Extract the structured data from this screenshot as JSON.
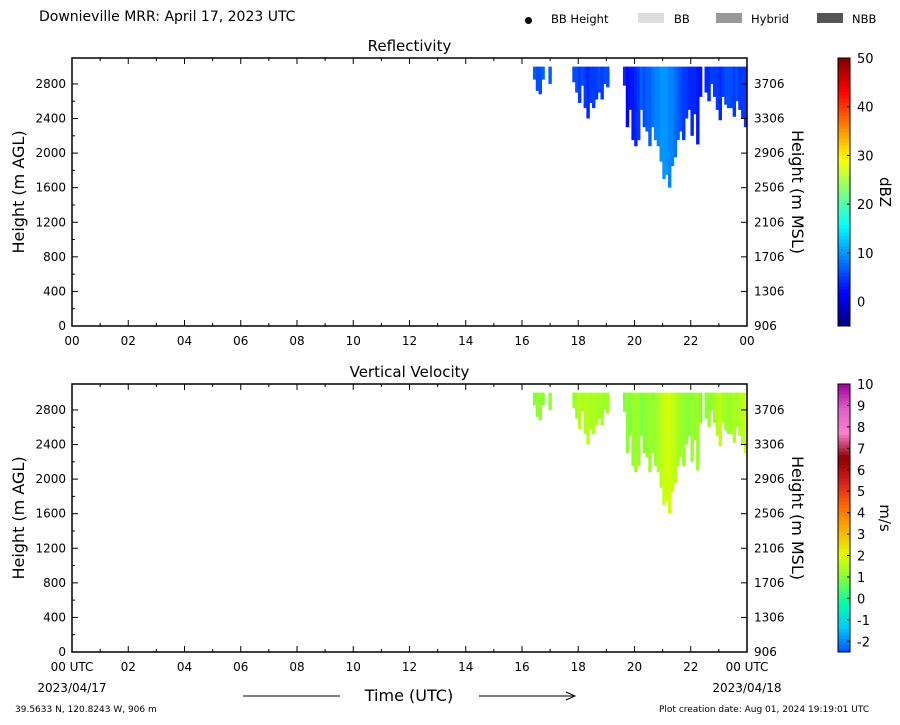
{
  "header": {
    "title": "Downieville MRR:  April 17, 2023 UTC",
    "legend": [
      {
        "label": "BB Height",
        "marker": "dot",
        "color": "#000000"
      },
      {
        "label": "BB",
        "marker": "swatch",
        "color": "#dcdcdc"
      },
      {
        "label": "Hybrid",
        "marker": "swatch",
        "color": "#999999"
      },
      {
        "label": "NBB",
        "marker": "swatch",
        "color": "#555555"
      }
    ]
  },
  "footer": {
    "location": "39.5633 N, 120.8243 W, 906 m",
    "creation": "Plot creation date: Aug 01, 2024 19:19:01 UTC"
  },
  "chart_data": [
    {
      "type": "heatmap",
      "title": "Reflectivity",
      "ylabel": "Height (m AGL)",
      "y2label": "Height (m MSL)",
      "xlim": [
        0,
        24
      ],
      "ylim": [
        0,
        3100
      ],
      "yticks": [
        0,
        400,
        800,
        1200,
        1600,
        2000,
        2400,
        2800
      ],
      "y2ticks": [
        "906",
        "1306",
        "1706",
        "2106",
        "2506",
        "2906",
        "3306",
        "3706"
      ],
      "xticks": [
        "00",
        "02",
        "04",
        "06",
        "08",
        "10",
        "12",
        "14",
        "16",
        "18",
        "20",
        "22",
        "00"
      ],
      "colorbar": {
        "label": "dBZ",
        "range": [
          -5,
          50
        ],
        "ticks": [
          "0",
          "10",
          "20",
          "30",
          "40",
          "50"
        ],
        "colors": [
          "#00007f",
          "#0000ff",
          "#007fff",
          "#00ffff",
          "#7fff7f",
          "#ffff00",
          "#ff7f00",
          "#ff0000",
          "#7f0000"
        ]
      },
      "echo_top": 3000,
      "profile": [
        {
          "x": 16.45,
          "bottom": 2850,
          "value": 7
        },
        {
          "x": 16.55,
          "bottom": 2720,
          "value": 6
        },
        {
          "x": 16.65,
          "bottom": 2680,
          "value": 6
        },
        {
          "x": 16.75,
          "bottom": 2850,
          "value": 7
        },
        {
          "x": 17.0,
          "bottom": 2800,
          "value": 7
        },
        {
          "x": 17.85,
          "bottom": 2820,
          "value": 6
        },
        {
          "x": 17.95,
          "bottom": 2700,
          "value": 6
        },
        {
          "x": 18.05,
          "bottom": 2580,
          "value": 5
        },
        {
          "x": 18.15,
          "bottom": 2780,
          "value": 6
        },
        {
          "x": 18.25,
          "bottom": 2520,
          "value": 5
        },
        {
          "x": 18.35,
          "bottom": 2400,
          "value": 4
        },
        {
          "x": 18.45,
          "bottom": 2580,
          "value": 5
        },
        {
          "x": 18.55,
          "bottom": 2520,
          "value": 5
        },
        {
          "x": 18.65,
          "bottom": 2620,
          "value": 5
        },
        {
          "x": 18.75,
          "bottom": 2700,
          "value": 6
        },
        {
          "x": 18.85,
          "bottom": 2620,
          "value": 5
        },
        {
          "x": 18.95,
          "bottom": 2800,
          "value": 6
        },
        {
          "x": 19.05,
          "bottom": 2760,
          "value": 6
        },
        {
          "x": 19.65,
          "bottom": 2780,
          "value": 4
        },
        {
          "x": 19.75,
          "bottom": 2300,
          "value": 2
        },
        {
          "x": 19.85,
          "bottom": 2500,
          "value": 3
        },
        {
          "x": 19.95,
          "bottom": 2150,
          "value": 3
        },
        {
          "x": 20.05,
          "bottom": 2080,
          "value": 4
        },
        {
          "x": 20.15,
          "bottom": 2150,
          "value": 5
        },
        {
          "x": 20.25,
          "bottom": 2500,
          "value": 7
        },
        {
          "x": 20.35,
          "bottom": 2300,
          "value": 6
        },
        {
          "x": 20.45,
          "bottom": 2250,
          "value": 7
        },
        {
          "x": 20.55,
          "bottom": 2080,
          "value": 7
        },
        {
          "x": 20.65,
          "bottom": 2300,
          "value": 8
        },
        {
          "x": 20.75,
          "bottom": 2150,
          "value": 9
        },
        {
          "x": 20.85,
          "bottom": 2080,
          "value": 9
        },
        {
          "x": 20.95,
          "bottom": 1900,
          "value": 10
        },
        {
          "x": 21.05,
          "bottom": 1700,
          "value": 10
        },
        {
          "x": 21.15,
          "bottom": 1750,
          "value": 10
        },
        {
          "x": 21.25,
          "bottom": 1600,
          "value": 9
        },
        {
          "x": 21.35,
          "bottom": 1850,
          "value": 9
        },
        {
          "x": 21.45,
          "bottom": 1950,
          "value": 8
        },
        {
          "x": 21.55,
          "bottom": 2150,
          "value": 7
        },
        {
          "x": 21.65,
          "bottom": 2250,
          "value": 6
        },
        {
          "x": 21.75,
          "bottom": 2150,
          "value": 5
        },
        {
          "x": 21.85,
          "bottom": 2400,
          "value": 5
        },
        {
          "x": 21.95,
          "bottom": 2500,
          "value": 4
        },
        {
          "x": 22.05,
          "bottom": 2200,
          "value": 4
        },
        {
          "x": 22.15,
          "bottom": 2450,
          "value": 4
        },
        {
          "x": 22.25,
          "bottom": 2100,
          "value": 3
        },
        {
          "x": 22.35,
          "bottom": 2650,
          "value": 3
        },
        {
          "x": 22.55,
          "bottom": 2700,
          "value": 4
        },
        {
          "x": 22.65,
          "bottom": 2600,
          "value": 4
        },
        {
          "x": 22.75,
          "bottom": 2800,
          "value": 5
        },
        {
          "x": 22.85,
          "bottom": 2650,
          "value": 5
        },
        {
          "x": 22.95,
          "bottom": 2500,
          "value": 5
        },
        {
          "x": 23.05,
          "bottom": 2380,
          "value": 4
        },
        {
          "x": 23.15,
          "bottom": 2650,
          "value": 5
        },
        {
          "x": 23.25,
          "bottom": 2560,
          "value": 6
        },
        {
          "x": 23.35,
          "bottom": 2520,
          "value": 6
        },
        {
          "x": 23.45,
          "bottom": 2520,
          "value": 6
        },
        {
          "x": 23.55,
          "bottom": 2420,
          "value": 5
        },
        {
          "x": 23.65,
          "bottom": 2600,
          "value": 6
        },
        {
          "x": 23.75,
          "bottom": 2500,
          "value": 5
        },
        {
          "x": 23.85,
          "bottom": 2400,
          "value": 5
        },
        {
          "x": 23.95,
          "bottom": 2300,
          "value": 5
        }
      ]
    },
    {
      "type": "heatmap",
      "title": "Vertical Velocity",
      "ylabel": "Height (m AGL)",
      "y2label": "Height (m MSL)",
      "xlabel": "Time (UTC)",
      "xlim": [
        0,
        24
      ],
      "ylim": [
        0,
        3100
      ],
      "yticks": [
        0,
        400,
        800,
        1200,
        1600,
        2000,
        2400,
        2800
      ],
      "y2ticks": [
        "906",
        "1306",
        "1706",
        "2106",
        "2506",
        "2906",
        "3306",
        "3706"
      ],
      "xticks": [
        "00 UTC",
        "02",
        "04",
        "06",
        "08",
        "10",
        "12",
        "14",
        "16",
        "18",
        "20",
        "22",
        "00 UTC"
      ],
      "date_start": "2023/04/17",
      "date_end": "2023/04/18",
      "colorbar": {
        "label": "m/s",
        "range": [
          -2.5,
          10
        ],
        "ticks": [
          "-2",
          "-1",
          "0",
          "1",
          "2",
          "3",
          "4",
          "5",
          "6",
          "7",
          "8",
          "9",
          "10"
        ],
        "colors": [
          "#0050ff",
          "#00c8ff",
          "#00ffaa",
          "#7cff3c",
          "#e0ff00",
          "#ffb000",
          "#ff6a00",
          "#d21e1e",
          "#8c0000",
          "#ff7fd0",
          "#e060c8",
          "#a000a0"
        ]
      },
      "echo_top": 3000,
      "profile": [
        {
          "x": 16.45,
          "bottom": 2850,
          "value": 1.0
        },
        {
          "x": 16.55,
          "bottom": 2720,
          "value": 1.1
        },
        {
          "x": 16.65,
          "bottom": 2680,
          "value": 1.2
        },
        {
          "x": 16.75,
          "bottom": 2850,
          "value": 1.0
        },
        {
          "x": 17.0,
          "bottom": 2800,
          "value": 1.1
        },
        {
          "x": 17.85,
          "bottom": 2820,
          "value": 1.2
        },
        {
          "x": 17.95,
          "bottom": 2700,
          "value": 1.3
        },
        {
          "x": 18.05,
          "bottom": 2580,
          "value": 1.6
        },
        {
          "x": 18.15,
          "bottom": 2780,
          "value": 1.4
        },
        {
          "x": 18.25,
          "bottom": 2520,
          "value": 1.5
        },
        {
          "x": 18.35,
          "bottom": 2400,
          "value": 1.5
        },
        {
          "x": 18.45,
          "bottom": 2580,
          "value": 1.4
        },
        {
          "x": 18.55,
          "bottom": 2520,
          "value": 1.5
        },
        {
          "x": 18.65,
          "bottom": 2620,
          "value": 1.4
        },
        {
          "x": 18.75,
          "bottom": 2700,
          "value": 1.3
        },
        {
          "x": 18.85,
          "bottom": 2620,
          "value": 1.4
        },
        {
          "x": 18.95,
          "bottom": 2800,
          "value": 1.2
        },
        {
          "x": 19.05,
          "bottom": 2760,
          "value": 1.3
        },
        {
          "x": 19.65,
          "bottom": 2780,
          "value": 1.0
        },
        {
          "x": 19.75,
          "bottom": 2300,
          "value": 1.1
        },
        {
          "x": 19.85,
          "bottom": 2500,
          "value": 1.0
        },
        {
          "x": 19.95,
          "bottom": 2150,
          "value": 1.2
        },
        {
          "x": 20.05,
          "bottom": 2080,
          "value": 1.3
        },
        {
          "x": 20.15,
          "bottom": 2150,
          "value": 1.2
        },
        {
          "x": 20.25,
          "bottom": 2500,
          "value": 0.9
        },
        {
          "x": 20.35,
          "bottom": 2300,
          "value": 1.0
        },
        {
          "x": 20.45,
          "bottom": 2250,
          "value": 1.1
        },
        {
          "x": 20.55,
          "bottom": 2080,
          "value": 1.3
        },
        {
          "x": 20.65,
          "bottom": 2300,
          "value": 1.1
        },
        {
          "x": 20.75,
          "bottom": 2150,
          "value": 1.2
        },
        {
          "x": 20.85,
          "bottom": 2080,
          "value": 1.4
        },
        {
          "x": 20.95,
          "bottom": 1900,
          "value": 1.6
        },
        {
          "x": 21.05,
          "bottom": 1700,
          "value": 1.8
        },
        {
          "x": 21.15,
          "bottom": 1750,
          "value": 1.8
        },
        {
          "x": 21.25,
          "bottom": 1600,
          "value": 1.9
        },
        {
          "x": 21.35,
          "bottom": 1850,
          "value": 1.7
        },
        {
          "x": 21.45,
          "bottom": 1950,
          "value": 1.6
        },
        {
          "x": 21.55,
          "bottom": 2150,
          "value": 1.4
        },
        {
          "x": 21.65,
          "bottom": 2250,
          "value": 1.3
        },
        {
          "x": 21.75,
          "bottom": 2150,
          "value": 1.2
        },
        {
          "x": 21.85,
          "bottom": 2400,
          "value": 1.1
        },
        {
          "x": 21.95,
          "bottom": 2500,
          "value": 1.0
        },
        {
          "x": 22.05,
          "bottom": 2200,
          "value": 1.2
        },
        {
          "x": 22.15,
          "bottom": 2450,
          "value": 1.1
        },
        {
          "x": 22.25,
          "bottom": 2100,
          "value": 1.3
        },
        {
          "x": 22.35,
          "bottom": 2650,
          "value": 1.0
        },
        {
          "x": 22.55,
          "bottom": 2700,
          "value": 1.1
        },
        {
          "x": 22.65,
          "bottom": 2600,
          "value": 1.2
        },
        {
          "x": 22.75,
          "bottom": 2800,
          "value": 1.1
        },
        {
          "x": 22.85,
          "bottom": 2650,
          "value": 1.3
        },
        {
          "x": 22.95,
          "bottom": 2500,
          "value": 1.5
        },
        {
          "x": 23.05,
          "bottom": 2380,
          "value": 1.7
        },
        {
          "x": 23.15,
          "bottom": 2650,
          "value": 1.4
        },
        {
          "x": 23.25,
          "bottom": 2560,
          "value": 1.3
        },
        {
          "x": 23.35,
          "bottom": 2520,
          "value": 1.2
        },
        {
          "x": 23.45,
          "bottom": 2520,
          "value": 1.3
        },
        {
          "x": 23.55,
          "bottom": 2420,
          "value": 1.5
        },
        {
          "x": 23.65,
          "bottom": 2600,
          "value": 1.3
        },
        {
          "x": 23.75,
          "bottom": 2500,
          "value": 1.5
        },
        {
          "x": 23.85,
          "bottom": 2400,
          "value": 1.6
        },
        {
          "x": 23.95,
          "bottom": 2300,
          "value": 1.8
        }
      ]
    }
  ]
}
